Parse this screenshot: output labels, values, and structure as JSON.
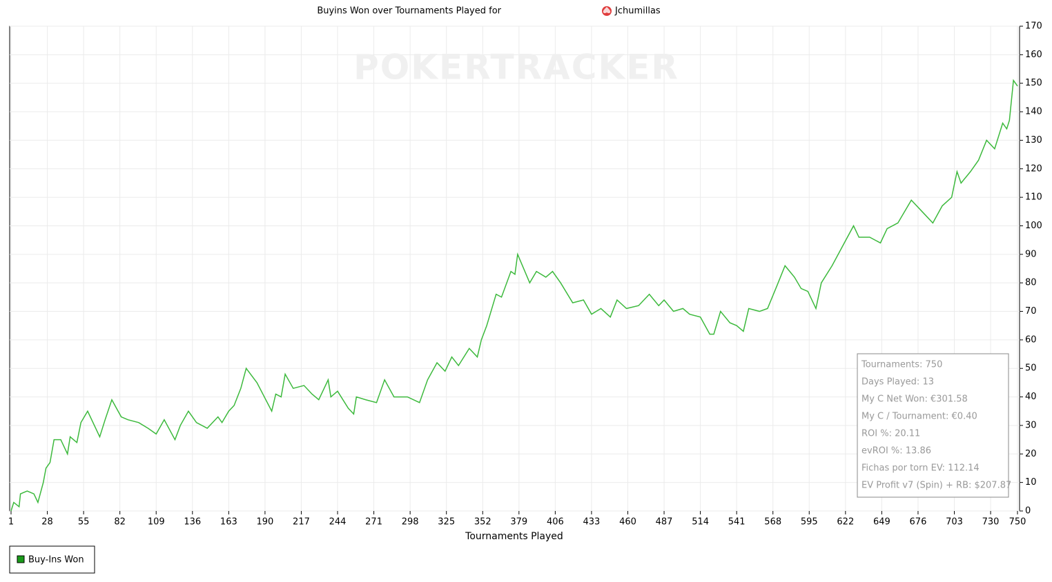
{
  "chart_data": {
    "type": "line",
    "title": "Buyins Won over Tournaments Played for",
    "player": "Jchumillas",
    "watermark": "POKERTRACKER",
    "x_label": "Tournaments Played",
    "xlim": [
      1,
      750
    ],
    "xticks": [
      1,
      28,
      55,
      82,
      109,
      136,
      163,
      190,
      217,
      244,
      271,
      298,
      325,
      352,
      379,
      406,
      433,
      460,
      487,
      514,
      541,
      568,
      595,
      622,
      649,
      676,
      703,
      730,
      750
    ],
    "ylim": [
      0,
      170
    ],
    "yticks": [
      0,
      10,
      20,
      30,
      40,
      50,
      60,
      70,
      80,
      90,
      100,
      110,
      120,
      130,
      140,
      150,
      160,
      170
    ],
    "grid": true,
    "legend": "bottom-left",
    "x": [
      1,
      3,
      7,
      8,
      13,
      18,
      21,
      25,
      27,
      30,
      33,
      38,
      43,
      45,
      50,
      53,
      58,
      67,
      71,
      76,
      83,
      88,
      96,
      103,
      109,
      115,
      123,
      127,
      133,
      139,
      147,
      155,
      158,
      163,
      167,
      172,
      176,
      184,
      195,
      198,
      202,
      205,
      211,
      219,
      225,
      230,
      237,
      239,
      244,
      252,
      256,
      258,
      265,
      273,
      279,
      286,
      296,
      305,
      311,
      318,
      324,
      329,
      334,
      342,
      348,
      351,
      355,
      362,
      366,
      373,
      376,
      378,
      387,
      392,
      399,
      404,
      410,
      419,
      427,
      433,
      440,
      447,
      452,
      459,
      468,
      476,
      483,
      487,
      494,
      501,
      506,
      514,
      521,
      524,
      529,
      536,
      541,
      546,
      550,
      558,
      564,
      571,
      577,
      584,
      589,
      594,
      600,
      604,
      612,
      620,
      628,
      632,
      640,
      648,
      653,
      661,
      671,
      681,
      687,
      694,
      701,
      705,
      708,
      715,
      721,
      727,
      733,
      739,
      742,
      744,
      747,
      750
    ],
    "series": [
      {
        "name": "Buy-Ins Won",
        "color": "#3cb93c",
        "values": [
          0,
          3,
          1.5,
          6,
          7,
          6,
          3,
          10,
          15,
          17,
          25,
          25,
          20,
          26,
          24,
          31,
          35,
          26,
          32,
          39,
          33,
          32,
          31,
          29,
          27,
          32,
          25,
          30,
          35,
          31,
          29,
          33,
          31,
          35,
          37,
          43,
          50,
          45,
          35,
          41,
          40,
          48,
          43,
          44,
          41,
          39,
          46,
          40,
          42,
          36,
          34,
          40,
          39,
          38,
          46,
          40,
          40,
          38,
          46,
          52,
          49,
          54,
          51,
          57,
          54,
          60,
          65,
          76,
          75,
          84,
          83,
          90,
          80,
          84,
          82,
          84,
          80,
          73,
          74,
          69,
          71,
          68,
          74,
          71,
          72,
          76,
          72,
          74,
          70,
          71,
          69,
          68,
          62,
          62,
          70,
          66,
          65,
          63,
          71,
          70,
          71,
          79,
          86,
          82,
          78,
          77,
          71,
          80,
          86,
          93,
          100,
          96,
          96,
          94,
          99,
          101,
          109,
          104,
          101,
          107,
          110,
          119,
          115,
          119,
          123,
          130,
          127,
          136,
          134,
          137,
          151,
          149
        ]
      }
    ],
    "stats_box": [
      "Tournaments: 750",
      "Days Played: 13",
      "My C Net Won: €301.58",
      "My C / Tournament: €0.40",
      "ROI %: 20.11",
      "evROI %: 13.86",
      "Fichas por torn EV: 112.14",
      "EV Profit v7 (Spin) + RB: $207.87"
    ]
  }
}
